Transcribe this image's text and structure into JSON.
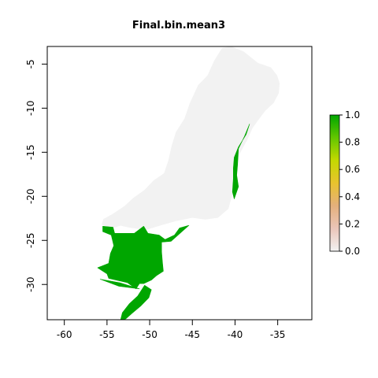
{
  "title": "Final.bin.mean3",
  "colors": {
    "background_region": "#f2f2f2",
    "presence": "#00a600",
    "frame": "#000000"
  },
  "chart_data": {
    "type": "heatmap",
    "title": "Final.bin.mean3",
    "xlabel": "",
    "ylabel": "",
    "xlim": [
      -62,
      -31
    ],
    "ylim": [
      -34,
      -3
    ],
    "x_ticks": [
      -60,
      -55,
      -50,
      -45,
      -40,
      -35
    ],
    "y_ticks": [
      -5,
      -10,
      -15,
      -20,
      -25,
      -30
    ],
    "x_tick_labels": [
      "-60",
      "-55",
      "-50",
      "-45",
      "-40",
      "-35"
    ],
    "y_tick_labels": [
      "-5",
      "-10",
      "-15",
      "-20",
      "-25",
      "-30"
    ],
    "legend": {
      "placement": "right",
      "range": [
        0,
        1
      ],
      "ticks": [
        0.0,
        0.2,
        0.4,
        0.6,
        0.8,
        1.0
      ],
      "tick_labels": [
        "0.0",
        "0.2",
        "0.4",
        "0.6",
        "0.8",
        "1.0"
      ],
      "colors": [
        "#f2f2f2",
        "#eac5b9",
        "#e4b07c",
        "#e8c32e",
        "#c4d900",
        "#63c600",
        "#00a600"
      ]
    },
    "regions": [
      {
        "value": 0,
        "polygon": [
          [
            -52.5,
            -23.5
          ],
          [
            -50.5,
            -23.8
          ],
          [
            -48.8,
            -23.3
          ],
          [
            -47,
            -22.8
          ],
          [
            -45,
            -22.4
          ],
          [
            -43.5,
            -22.6
          ],
          [
            -42,
            -22.4
          ],
          [
            -40.8,
            -21.4
          ],
          [
            -40.4,
            -20
          ],
          [
            -40.1,
            -18.5
          ],
          [
            -40.2,
            -16.8
          ],
          [
            -39.4,
            -15
          ],
          [
            -38.6,
            -13.6
          ],
          [
            -38,
            -12.3
          ],
          [
            -37.2,
            -11.2
          ],
          [
            -36.5,
            -10.3
          ],
          [
            -35.5,
            -9.4
          ],
          [
            -34.9,
            -8.3
          ],
          [
            -34.8,
            -7.2
          ],
          [
            -35.1,
            -6.3
          ],
          [
            -35.8,
            -5.4
          ],
          [
            -37.3,
            -4.9
          ],
          [
            -39,
            -3.6
          ],
          [
            -40.5,
            -3
          ],
          [
            -41.5,
            -3.2
          ],
          [
            -42.4,
            -4.6
          ],
          [
            -43.2,
            -6.3
          ],
          [
            -44.3,
            -7.4
          ],
          [
            -45.3,
            -9.5
          ],
          [
            -45.9,
            -11.2
          ],
          [
            -46.9,
            -12.7
          ],
          [
            -47.4,
            -14.3
          ],
          [
            -47.8,
            -16
          ],
          [
            -48.3,
            -17.4
          ],
          [
            -49.5,
            -18.2
          ],
          [
            -50.6,
            -19.3
          ],
          [
            -51.9,
            -20.2
          ],
          [
            -52.9,
            -21.1
          ],
          [
            -54.3,
            -22
          ],
          [
            -55.4,
            -22.6
          ],
          [
            -55.6,
            -23.2
          ],
          [
            -54.4,
            -23.6
          ],
          [
            -53.4,
            -23.3
          ]
        ]
      },
      {
        "value": 1,
        "polygon": [
          [
            -55.5,
            -23.4
          ],
          [
            -54.3,
            -23.5
          ],
          [
            -54.1,
            -24.2
          ],
          [
            -51.8,
            -24.2
          ],
          [
            -50.7,
            -23.4
          ],
          [
            -50.2,
            -24.2
          ],
          [
            -48.9,
            -24.4
          ],
          [
            -48.2,
            -24.9
          ],
          [
            -47.1,
            -24.4
          ],
          [
            -46.5,
            -23.6
          ],
          [
            -45.4,
            -23.3
          ],
          [
            -47.5,
            -25.1
          ],
          [
            -48.6,
            -25.2
          ],
          [
            -48.6,
            -26.3
          ],
          [
            -48.5,
            -27.5
          ],
          [
            -48.4,
            -28.5
          ],
          [
            -49.2,
            -29
          ],
          [
            -49.8,
            -29.5
          ],
          [
            -50.7,
            -29.9
          ],
          [
            -51.2,
            -29.9
          ],
          [
            -51.6,
            -30.5
          ],
          [
            -52.6,
            -29.8
          ],
          [
            -53.5,
            -29.6
          ],
          [
            -54.8,
            -29.3
          ],
          [
            -55,
            -28.8
          ],
          [
            -56.1,
            -28.1
          ],
          [
            -54.8,
            -27.6
          ],
          [
            -54.6,
            -26.5
          ],
          [
            -54.2,
            -25.6
          ],
          [
            -54.5,
            -24.4
          ],
          [
            -55.5,
            -24
          ]
        ]
      },
      {
        "value": 1,
        "polygon": [
          [
            -50.6,
            -30.1
          ],
          [
            -49.8,
            -30.6
          ],
          [
            -50.1,
            -31.5
          ],
          [
            -51,
            -32.4
          ],
          [
            -52.1,
            -33.3
          ],
          [
            -52.8,
            -33.9
          ],
          [
            -53.4,
            -34
          ],
          [
            -53.2,
            -33.2
          ],
          [
            -52.4,
            -32.2
          ],
          [
            -51.4,
            -31.3
          ]
        ]
      },
      {
        "value": 1,
        "polygon": [
          [
            -38.3,
            -11.8
          ],
          [
            -38.9,
            -13.2
          ],
          [
            -39.6,
            -14.6
          ],
          [
            -39.7,
            -16.4
          ],
          [
            -39.8,
            -17.6
          ],
          [
            -39.6,
            -18.9
          ],
          [
            -40.1,
            -20.3
          ],
          [
            -40.3,
            -19.5
          ],
          [
            -40.2,
            -18
          ],
          [
            -40.2,
            -16.8
          ],
          [
            -40.1,
            -15.6
          ],
          [
            -39.6,
            -14.4
          ],
          [
            -38.7,
            -13
          ]
        ]
      },
      {
        "value": 1,
        "polygon": [
          [
            -55.8,
            -29.4
          ],
          [
            -53.5,
            -29.8
          ],
          [
            -51.2,
            -30.5
          ],
          [
            -53.6,
            -30.2
          ]
        ]
      }
    ]
  }
}
